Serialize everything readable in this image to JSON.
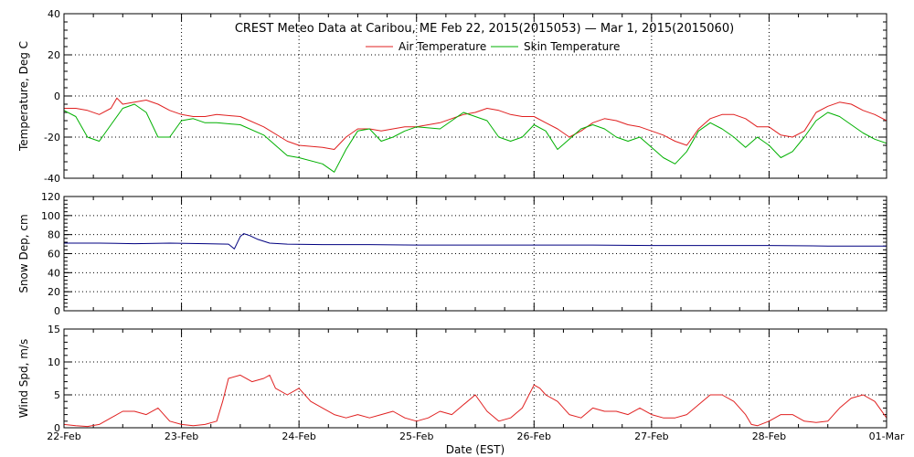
{
  "chart_data": {
    "title": "CREST Meteo Data at Caribou, ME   Feb 22, 2015(2015053) — Mar  1, 2015(2015060)",
    "xlabel": "Date (EST)",
    "x_ticks": [
      "22-Feb",
      "23-Feb",
      "24-Feb",
      "25-Feb",
      "26-Feb",
      "27-Feb",
      "28-Feb",
      "01-Mar"
    ],
    "x_range": [
      "2015-02-22",
      "2015-03-01"
    ],
    "grid": true,
    "panels": [
      {
        "type": "line",
        "ylabel": "Temperature, Deg C",
        "ylim": [
          -40,
          40
        ],
        "yticks": [
          -40,
          -20,
          0,
          20,
          40
        ],
        "legend": "top-center",
        "series": [
          {
            "name": "Air Temperature",
            "color": "#e02020",
            "x": [
              0,
              0.1,
              0.2,
              0.3,
              0.4,
              0.45,
              0.5,
              0.6,
              0.7,
              0.8,
              0.9,
              1.0,
              1.1,
              1.2,
              1.3,
              1.5,
              1.7,
              1.9,
              2.0,
              2.2,
              2.3,
              2.4,
              2.5,
              2.6,
              2.7,
              2.8,
              2.9,
              3.0,
              3.2,
              3.4,
              3.5,
              3.6,
              3.7,
              3.8,
              3.9,
              4.0,
              4.1,
              4.2,
              4.3,
              4.4,
              4.5,
              4.6,
              4.7,
              4.8,
              4.9,
              5.0,
              5.1,
              5.2,
              5.3,
              5.4,
              5.5,
              5.6,
              5.7,
              5.8,
              5.9,
              6.0,
              6.1,
              6.2,
              6.3,
              6.4,
              6.5,
              6.6,
              6.7,
              6.8,
              6.9,
              7.0
            ],
            "values": [
              -6,
              -6,
              -7,
              -9,
              -6,
              -1,
              -4,
              -3,
              -2,
              -4,
              -7,
              -9,
              -10,
              -10,
              -9,
              -10,
              -15,
              -22,
              -24,
              -25,
              -26,
              -20,
              -16,
              -16,
              -17,
              -16,
              -15,
              -15,
              -13,
              -9,
              -8,
              -6,
              -7,
              -9,
              -10,
              -10,
              -13,
              -16,
              -20,
              -17,
              -13,
              -11,
              -12,
              -14,
              -15,
              -17,
              -19,
              -22,
              -24,
              -16,
              -11,
              -9,
              -9,
              -11,
              -15,
              -15,
              -19,
              -20,
              -17,
              -8,
              -5,
              -3,
              -4,
              -7,
              -9,
              -12
            ]
          },
          {
            "name": "Skin Temperature",
            "color": "#00b000",
            "x": [
              0,
              0.1,
              0.2,
              0.3,
              0.4,
              0.5,
              0.6,
              0.7,
              0.8,
              0.9,
              1.0,
              1.1,
              1.2,
              1.3,
              1.5,
              1.7,
              1.8,
              1.9,
              2.0,
              2.2,
              2.3,
              2.4,
              2.5,
              2.6,
              2.7,
              2.8,
              2.9,
              3.0,
              3.2,
              3.3,
              3.4,
              3.5,
              3.6,
              3.7,
              3.8,
              3.9,
              4.0,
              4.1,
              4.2,
              4.3,
              4.4,
              4.5,
              4.6,
              4.7,
              4.8,
              4.9,
              5.0,
              5.1,
              5.2,
              5.3,
              5.4,
              5.5,
              5.6,
              5.7,
              5.8,
              5.9,
              6.0,
              6.1,
              6.2,
              6.3,
              6.4,
              6.5,
              6.6,
              6.7,
              6.8,
              6.9,
              7.0
            ],
            "values": [
              -7,
              -10,
              -20,
              -22,
              -14,
              -6,
              -4,
              -8,
              -20,
              -20,
              -12,
              -11,
              -13,
              -13,
              -14,
              -19,
              -24,
              -29,
              -30,
              -33,
              -37,
              -26,
              -17,
              -16,
              -22,
              -20,
              -17,
              -15,
              -16,
              -12,
              -8,
              -10,
              -12,
              -20,
              -22,
              -20,
              -14,
              -17,
              -26,
              -21,
              -16,
              -14,
              -16,
              -20,
              -22,
              -20,
              -25,
              -30,
              -33,
              -27,
              -17,
              -13,
              -16,
              -20,
              -25,
              -20,
              -24,
              -30,
              -27,
              -20,
              -12,
              -8,
              -10,
              -14,
              -18,
              -21,
              -23
            ]
          }
        ]
      },
      {
        "type": "line",
        "ylabel": "Snow Dep, cm",
        "ylim": [
          0,
          120
        ],
        "yticks": [
          0,
          20,
          40,
          60,
          80,
          100,
          120
        ],
        "series": [
          {
            "color": "#000080",
            "x": [
              0,
              0.3,
              0.6,
              0.9,
              1.2,
              1.4,
              1.45,
              1.5,
              1.53,
              1.58,
              1.65,
              1.75,
              1.9,
              2.2,
              2.6,
              3.0,
              3.5,
              4.0,
              4.5,
              5.0,
              5.5,
              6.0,
              6.5,
              7.0
            ],
            "values": [
              71,
              71,
              70.5,
              71,
              70.5,
              70,
              65,
              78,
              81,
              79,
              75,
              71,
              70,
              69.5,
              69.5,
              69,
              69,
              69,
              69,
              68.5,
              68.5,
              68.5,
              68,
              68
            ]
          }
        ]
      },
      {
        "type": "line",
        "ylabel": "Wind Spd, m/s",
        "ylim": [
          0,
          15
        ],
        "yticks": [
          0,
          5,
          10,
          15
        ],
        "series": [
          {
            "color": "#e02020",
            "x": [
              0,
              0.1,
              0.2,
              0.3,
              0.4,
              0.5,
              0.6,
              0.7,
              0.8,
              0.9,
              1.0,
              1.1,
              1.2,
              1.3,
              1.35,
              1.4,
              1.5,
              1.6,
              1.7,
              1.75,
              1.8,
              1.9,
              2.0,
              2.1,
              2.2,
              2.3,
              2.4,
              2.5,
              2.6,
              2.7,
              2.8,
              2.9,
              3.0,
              3.1,
              3.2,
              3.3,
              3.4,
              3.5,
              3.6,
              3.7,
              3.8,
              3.9,
              4.0,
              4.05,
              4.1,
              4.2,
              4.3,
              4.4,
              4.5,
              4.6,
              4.7,
              4.8,
              4.9,
              5.0,
              5.1,
              5.2,
              5.3,
              5.4,
              5.5,
              5.6,
              5.7,
              5.8,
              5.85,
              5.9,
              6.0,
              6.1,
              6.2,
              6.3,
              6.4,
              6.5,
              6.6,
              6.7,
              6.8,
              6.9,
              7.0
            ],
            "values": [
              0.5,
              0.3,
              0.2,
              0.5,
              1.5,
              2.5,
              2.5,
              2,
              3,
              1,
              0.5,
              0.3,
              0.5,
              1,
              4,
              7.5,
              8,
              7,
              7.5,
              8,
              6,
              5,
              6,
              4,
              3,
              2,
              1.5,
              2,
              1.5,
              2,
              2.5,
              1.5,
              1,
              1.5,
              2.5,
              2,
              3.5,
              5,
              2.5,
              1,
              1.5,
              3,
              6.5,
              6,
              5,
              4,
              2,
              1.5,
              3,
              2.5,
              2.5,
              2,
              3,
              2,
              1.5,
              1.5,
              2,
              3.5,
              5,
              5,
              4,
              2,
              0.5,
              0.3,
              1,
              2,
              2,
              1,
              0.8,
              1,
              3,
              4.5,
              5,
              4,
              1.5
            ]
          }
        ]
      }
    ]
  }
}
